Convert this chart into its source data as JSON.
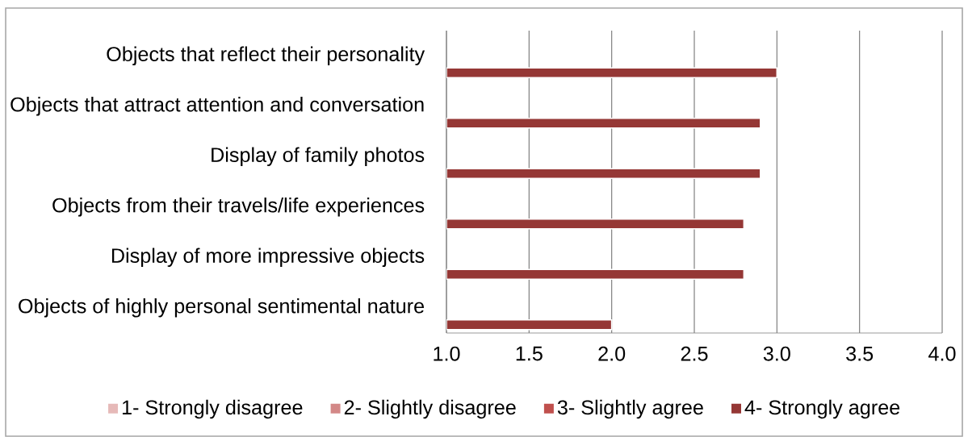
{
  "chart_data": {
    "type": "bar",
    "orientation": "horizontal",
    "categories": [
      "Objects that reflect their personality",
      "Objects that attract attention and conversation",
      "Display of family photos",
      "Objects from their travels/life experiences",
      "Display of more impressive objects",
      "Objects of highly personal sentimental nature"
    ],
    "series": [
      {
        "name": "1- Strongly disagree",
        "color": "#e6b9b8",
        "values": [
          null,
          null,
          null,
          null,
          null,
          null
        ]
      },
      {
        "name": "2- Slightly disagree",
        "color": "#d38887",
        "values": [
          null,
          null,
          null,
          null,
          null,
          null
        ]
      },
      {
        "name": "3- Slightly agree",
        "color": "#c0504d",
        "values": [
          null,
          null,
          null,
          null,
          null,
          null
        ]
      },
      {
        "name": "4- Strongly agree",
        "color": "#953735",
        "values": [
          3.0,
          2.9,
          2.9,
          2.8,
          2.8,
          2.0
        ]
      }
    ],
    "xlim": [
      1,
      4
    ],
    "xticks": [
      {
        "value": 1,
        "label": "1.0"
      },
      {
        "value": 1.5,
        "label": "1.5"
      },
      {
        "value": 2,
        "label": "2.0"
      },
      {
        "value": 2.5,
        "label": "2.5"
      },
      {
        "value": 3,
        "label": "3.0"
      },
      {
        "value": 3.5,
        "label": "3.5"
      },
      {
        "value": 4,
        "label": "4.0"
      }
    ],
    "grid": "x",
    "legend": "bottom"
  }
}
